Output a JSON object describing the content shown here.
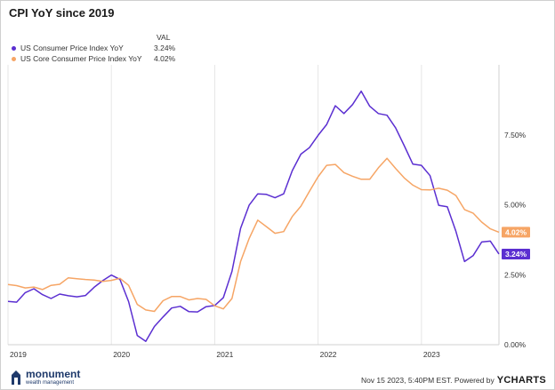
{
  "header": {
    "title": "CPI YoY since 2019"
  },
  "legend": {
    "value_header": "VAL",
    "entries": [
      {
        "name": "US Consumer Price Index YoY",
        "value": "3.24%",
        "color": "#5b2fd1"
      },
      {
        "name": "US Core Consumer Price Index YoY",
        "value": "4.02%",
        "color": "#f6a565"
      }
    ]
  },
  "chart_data": {
    "type": "line",
    "title": "CPI YoY since 2019",
    "ylim": [
      0,
      10
    ],
    "y_ticks": [
      0,
      2.5,
      5,
      7.5
    ],
    "y_tick_labels": [
      "0.00%",
      "2.50%",
      "5.00%",
      "7.50%"
    ],
    "x_range": [
      "2019-01",
      "2023-10"
    ],
    "x_tick_labels": [
      "2019",
      "2020",
      "2021",
      "2022",
      "2023"
    ],
    "grid": "vertical",
    "legend_placement": "top-left",
    "series": [
      {
        "name": "US Consumer Price Index YoY",
        "color": "#5b2fd1",
        "end_label": "3.24%",
        "x": [
          "2019-01",
          "2019-02",
          "2019-03",
          "2019-04",
          "2019-05",
          "2019-06",
          "2019-07",
          "2019-08",
          "2019-09",
          "2019-10",
          "2019-11",
          "2019-12",
          "2020-01",
          "2020-02",
          "2020-03",
          "2020-04",
          "2020-05",
          "2020-06",
          "2020-07",
          "2020-08",
          "2020-09",
          "2020-10",
          "2020-11",
          "2020-12",
          "2021-01",
          "2021-02",
          "2021-03",
          "2021-04",
          "2021-05",
          "2021-06",
          "2021-07",
          "2021-08",
          "2021-09",
          "2021-10",
          "2021-11",
          "2021-12",
          "2022-01",
          "2022-02",
          "2022-03",
          "2022-04",
          "2022-05",
          "2022-06",
          "2022-07",
          "2022-08",
          "2022-09",
          "2022-10",
          "2022-11",
          "2022-12",
          "2023-01",
          "2023-02",
          "2023-03",
          "2023-04",
          "2023-05",
          "2023-06",
          "2023-07",
          "2023-08",
          "2023-09",
          "2023-10"
        ],
        "values": [
          1.55,
          1.52,
          1.86,
          2.0,
          1.79,
          1.65,
          1.81,
          1.75,
          1.71,
          1.76,
          2.05,
          2.29,
          2.49,
          2.33,
          1.54,
          0.33,
          0.12,
          0.65,
          0.99,
          1.31,
          1.37,
          1.18,
          1.17,
          1.36,
          1.4,
          1.68,
          2.62,
          4.16,
          4.99,
          5.39,
          5.37,
          5.25,
          5.39,
          6.22,
          6.81,
          7.04,
          7.48,
          7.87,
          8.54,
          8.26,
          8.58,
          9.06,
          8.52,
          8.26,
          8.2,
          7.75,
          7.11,
          6.45,
          6.41,
          6.04,
          4.98,
          4.93,
          4.05,
          2.97,
          3.18,
          3.67,
          3.7,
          3.24
        ]
      },
      {
        "name": "US Core Consumer Price Index YoY",
        "color": "#f6a565",
        "end_label": "4.02%",
        "x": [
          "2019-01",
          "2019-02",
          "2019-03",
          "2019-04",
          "2019-05",
          "2019-06",
          "2019-07",
          "2019-08",
          "2019-09",
          "2019-10",
          "2019-11",
          "2019-12",
          "2020-01",
          "2020-02",
          "2020-03",
          "2020-04",
          "2020-05",
          "2020-06",
          "2020-07",
          "2020-08",
          "2020-09",
          "2020-10",
          "2020-11",
          "2020-12",
          "2021-01",
          "2021-02",
          "2021-03",
          "2021-04",
          "2021-05",
          "2021-06",
          "2021-07",
          "2021-08",
          "2021-09",
          "2021-10",
          "2021-11",
          "2021-12",
          "2022-01",
          "2022-02",
          "2022-03",
          "2022-04",
          "2022-05",
          "2022-06",
          "2022-07",
          "2022-08",
          "2022-09",
          "2022-10",
          "2022-11",
          "2022-12",
          "2023-01",
          "2023-02",
          "2023-03",
          "2023-04",
          "2023-05",
          "2023-06",
          "2023-07",
          "2023-08",
          "2023-09",
          "2023-10"
        ],
        "values": [
          2.15,
          2.11,
          2.03,
          2.06,
          1.97,
          2.12,
          2.16,
          2.39,
          2.36,
          2.33,
          2.31,
          2.26,
          2.3,
          2.37,
          2.12,
          1.44,
          1.24,
          1.19,
          1.57,
          1.72,
          1.72,
          1.6,
          1.65,
          1.62,
          1.39,
          1.28,
          1.65,
          2.97,
          3.8,
          4.45,
          4.22,
          3.98,
          4.04,
          4.58,
          4.95,
          5.48,
          6.0,
          6.41,
          6.44,
          6.15,
          6.02,
          5.91,
          5.91,
          6.32,
          6.66,
          6.3,
          5.96,
          5.7,
          5.54,
          5.53,
          5.59,
          5.52,
          5.33,
          4.83,
          4.7,
          4.38,
          4.14,
          4.02
        ]
      }
    ]
  },
  "footer": {
    "brand_name": "monument",
    "brand_sub": "wealth management",
    "timestamp_text": "Nov 15 2023, 5:40PM EST. Powered by",
    "powered_brand": "YCHARTS"
  }
}
